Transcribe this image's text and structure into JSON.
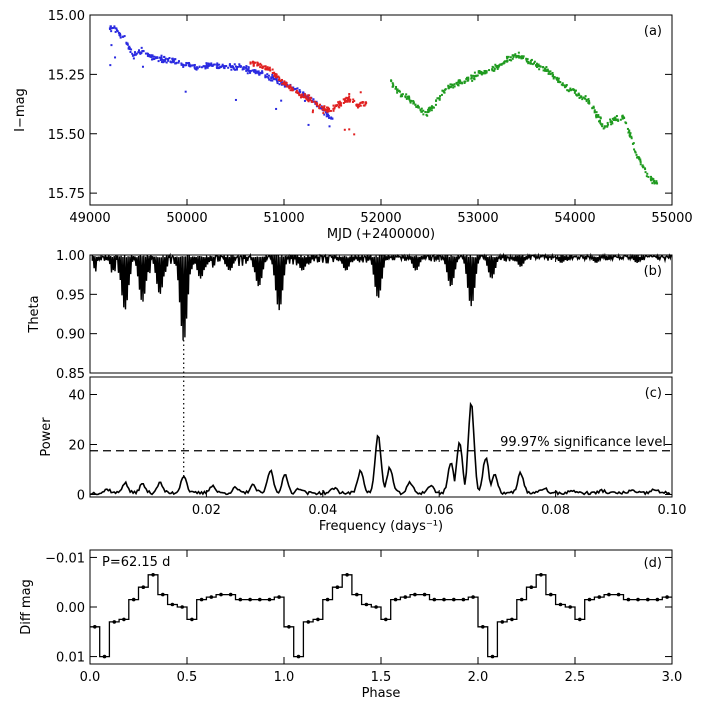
{
  "chart_data": [
    {
      "type": "scatter",
      "panel_label": "(a)",
      "xlabel": "MJD (+2400000)",
      "ylabel": "I−mag",
      "xlim": [
        49000,
        55000
      ],
      "ylim": [
        15.0,
        15.8
      ],
      "y_inverted": true,
      "xticks": [
        49000,
        50000,
        51000,
        52000,
        53000,
        54000,
        55000
      ],
      "yticks": [
        15.0,
        15.25,
        15.5,
        15.75
      ],
      "ytick_labels": [
        "15.00",
        "15.25",
        "15.50",
        "15.75"
      ],
      "series": [
        {
          "color": "#2a2ae0",
          "points": [
            [
              49200,
              15.06
            ],
            [
              49250,
              15.05
            ],
            [
              49300,
              15.08
            ],
            [
              49350,
              15.1
            ],
            [
              49450,
              15.17
            ],
            [
              49550,
              15.15
            ],
            [
              49650,
              15.18
            ],
            [
              49800,
              15.19
            ],
            [
              49950,
              15.2
            ],
            [
              50100,
              15.22
            ],
            [
              50250,
              15.21
            ],
            [
              50400,
              15.22
            ],
            [
              50550,
              15.22
            ],
            [
              50700,
              15.24
            ],
            [
              50850,
              15.26
            ],
            [
              51000,
              15.29
            ],
            [
              51150,
              15.32
            ],
            [
              51300,
              15.36
            ],
            [
              51450,
              15.42
            ],
            [
              51500,
              15.44
            ]
          ]
        },
        {
          "color": "#e02020",
          "points": [
            [
              50650,
              15.2
            ],
            [
              50750,
              15.21
            ],
            [
              50850,
              15.23
            ],
            [
              50950,
              15.27
            ],
            [
              51050,
              15.3
            ],
            [
              51150,
              15.33
            ],
            [
              51250,
              15.35
            ],
            [
              51350,
              15.38
            ],
            [
              51450,
              15.4
            ],
            [
              51550,
              15.38
            ],
            [
              51650,
              15.35
            ],
            [
              51750,
              15.38
            ],
            [
              51850,
              15.37
            ]
          ]
        },
        {
          "color": "#1f9a1f",
          "points": [
            [
              52100,
              15.28
            ],
            [
              52200,
              15.33
            ],
            [
              52350,
              15.37
            ],
            [
              52450,
              15.42
            ],
            [
              52500,
              15.4
            ],
            [
              52600,
              15.35
            ],
            [
              52700,
              15.3
            ],
            [
              52850,
              15.28
            ],
            [
              53000,
              15.25
            ],
            [
              53200,
              15.22
            ],
            [
              53300,
              15.19
            ],
            [
              53400,
              15.17
            ],
            [
              53550,
              15.2
            ],
            [
              53700,
              15.23
            ],
            [
              53900,
              15.3
            ],
            [
              54050,
              15.34
            ],
            [
              54150,
              15.37
            ],
            [
              54300,
              15.47
            ],
            [
              54400,
              15.44
            ],
            [
              54500,
              15.43
            ],
            [
              54650,
              15.6
            ],
            [
              54750,
              15.68
            ],
            [
              54850,
              15.71
            ]
          ]
        }
      ]
    },
    {
      "type": "line",
      "panel_label": "(b)",
      "ylabel": "Theta",
      "xlim": [
        0.0,
        0.1
      ],
      "ylim": [
        0.85,
        1.0
      ],
      "yticks": [
        0.85,
        0.9,
        0.95,
        1.0
      ],
      "ytick_labels": [
        "0.85",
        "0.90",
        "0.95",
        "1.00"
      ],
      "dips": [
        [
          0.006,
          0.93
        ],
        [
          0.009,
          0.94
        ],
        [
          0.012,
          0.95
        ],
        [
          0.0161,
          0.89
        ],
        [
          0.019,
          0.97
        ],
        [
          0.024,
          0.98
        ],
        [
          0.029,
          0.96
        ],
        [
          0.0325,
          0.93
        ],
        [
          0.0365,
          0.98
        ],
        [
          0.044,
          0.98
        ],
        [
          0.0495,
          0.945
        ],
        [
          0.056,
          0.98
        ],
        [
          0.062,
          0.96
        ],
        [
          0.0655,
          0.935
        ],
        [
          0.069,
          0.97
        ],
        [
          0.074,
          0.985
        ],
        [
          0.081,
          0.99
        ],
        [
          0.087,
          0.99
        ],
        [
          0.094,
          0.99
        ]
      ]
    },
    {
      "type": "line",
      "panel_label": "(c)",
      "ylabel": "Power",
      "xlabel": "Frequency (days⁻¹)",
      "xlim": [
        0.0,
        0.1
      ],
      "ylim": [
        -1,
        47
      ],
      "xticks": [
        0.02,
        0.04,
        0.06,
        0.08,
        0.1
      ],
      "xtick_labels": [
        "0.02",
        "0.04",
        "0.06",
        "0.08",
        "0.10"
      ],
      "yticks": [
        0,
        20,
        40
      ],
      "ytick_labels": [
        "0",
        "20",
        "40"
      ],
      "significance_level": 17.5,
      "significance_label": "99.97% significance level",
      "marked_frequency": 0.0161,
      "peaks": [
        [
          0.003,
          1.5
        ],
        [
          0.006,
          4
        ],
        [
          0.009,
          3.5
        ],
        [
          0.012,
          4
        ],
        [
          0.0161,
          7
        ],
        [
          0.021,
          3
        ],
        [
          0.025,
          2
        ],
        [
          0.028,
          3
        ],
        [
          0.031,
          9
        ],
        [
          0.0335,
          7
        ],
        [
          0.036,
          2
        ],
        [
          0.042,
          2
        ],
        [
          0.0465,
          9
        ],
        [
          0.0495,
          23
        ],
        [
          0.0515,
          10
        ],
        [
          0.055,
          4
        ],
        [
          0.0585,
          3
        ],
        [
          0.062,
          12
        ],
        [
          0.0635,
          20
        ],
        [
          0.0655,
          36
        ],
        [
          0.068,
          14
        ],
        [
          0.0695,
          7
        ],
        [
          0.074,
          8
        ],
        [
          0.078,
          2
        ],
        [
          0.083,
          1
        ],
        [
          0.088,
          1
        ],
        [
          0.093,
          1
        ],
        [
          0.097,
          1.5
        ]
      ]
    },
    {
      "type": "line",
      "panel_label": "(d)",
      "period_label": "P=62.15 d",
      "xlabel": "Phase",
      "ylabel": "Diff mag",
      "xlim": [
        0.0,
        3.0
      ],
      "ylim": [
        0.0115,
        -0.0115
      ],
      "xticks": [
        0.0,
        0.5,
        1.0,
        1.5,
        2.0,
        2.5,
        3.0
      ],
      "xtick_labels": [
        "0.0",
        "0.5",
        "1.0",
        "1.5",
        "2.0",
        "2.5",
        "3.0"
      ],
      "yticks": [
        -0.01,
        0.0,
        0.01
      ],
      "ytick_labels": [
        "−0.01",
        "0.00",
        "0.01"
      ],
      "phase_bins": [
        0.0,
        0.05,
        0.1,
        0.15,
        0.2,
        0.25,
        0.3,
        0.35,
        0.4,
        0.45,
        0.5,
        0.55,
        0.6,
        0.65,
        0.7,
        0.75,
        0.8,
        0.85,
        0.9,
        0.95
      ],
      "values": [
        0.004,
        0.01,
        0.003,
        0.0025,
        -0.0015,
        -0.004,
        -0.0065,
        -0.0025,
        -0.0005,
        0.0,
        0.0025,
        -0.0015,
        -0.002,
        -0.0025,
        -0.0025,
        -0.0015,
        -0.0015,
        -0.0015,
        -0.0015,
        -0.002
      ]
    }
  ]
}
